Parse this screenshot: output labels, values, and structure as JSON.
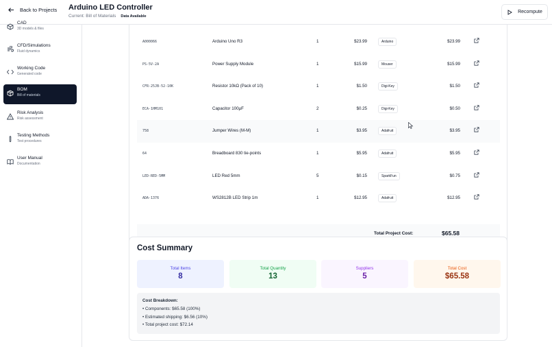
{
  "header": {
    "back_label": "Back to Projects",
    "title": "Arduino LED Controller",
    "subtitle": "Current: Bill of Materials",
    "badge": "Data Available",
    "recompute_label": "Recompute"
  },
  "sidebar": {
    "items": [
      {
        "label": "CAD",
        "desc": "3D models & files",
        "icon": "cube-icon"
      },
      {
        "label": "CFD/Simulations",
        "desc": "Fluid dynamics",
        "icon": "wind-icon"
      },
      {
        "label": "Working Code",
        "desc": "Generated code",
        "icon": "code-icon"
      },
      {
        "label": "BOM",
        "desc": "Bill of materials",
        "icon": "package-icon",
        "active": true
      },
      {
        "label": "Risk Analysis",
        "desc": "Risk assessment",
        "icon": "warning-icon"
      },
      {
        "label": "Testing Methods",
        "desc": "Test procedures",
        "icon": "test-tube-icon"
      },
      {
        "label": "User Manual",
        "desc": "Documentation",
        "icon": "book-icon"
      }
    ]
  },
  "bom": {
    "rows": [
      {
        "part": "A000066",
        "desc": "Arduino Uno R3",
        "qty": "1",
        "unit": "$23.99",
        "supplier": "Arduino",
        "total": "$23.99"
      },
      {
        "part": "PS-5V-2A",
        "desc": "Power Supply Module",
        "qty": "1",
        "unit": "$15.99",
        "supplier": "Mouser",
        "total": "$15.99"
      },
      {
        "part": "CFR-25JB-52-10K",
        "desc": "Resistor 10kΩ (Pack of 10)",
        "qty": "1",
        "unit": "$1.50",
        "supplier": "Digi-Key",
        "total": "$1.50"
      },
      {
        "part": "ECA-1HM101",
        "desc": "Capacitor 100μF",
        "qty": "2",
        "unit": "$0.25",
        "supplier": "Digi-Key",
        "total": "$0.50"
      },
      {
        "part": "758",
        "desc": "Jumper Wires (M-M)",
        "qty": "1",
        "unit": "$3.95",
        "supplier": "Adafruit",
        "total": "$3.95"
      },
      {
        "part": "64",
        "desc": "Breadboard 830 tie-points",
        "qty": "1",
        "unit": "$5.95",
        "supplier": "Adafruit",
        "total": "$5.95"
      },
      {
        "part": "LED-RED-5MM",
        "desc": "LED Red 5mm",
        "qty": "5",
        "unit": "$0.15",
        "supplier": "SparkFun",
        "total": "$0.75"
      },
      {
        "part": "ADA-1376",
        "desc": "WS2812B LED Strip 1m",
        "qty": "1",
        "unit": "$12.95",
        "supplier": "Adafruit",
        "total": "$12.95"
      }
    ],
    "total_label": "Total Project Cost:",
    "total_value": "$65.58"
  },
  "summary": {
    "title": "Cost Summary",
    "stats": [
      {
        "label": "Total Items",
        "value": "8",
        "bg": "#eef2ff",
        "label_color": "#4f46e5",
        "value_color": "#3730a3"
      },
      {
        "label": "Total Quantity",
        "value": "13",
        "bg": "#f0fdf4",
        "label_color": "#16a34a",
        "value_color": "#166534"
      },
      {
        "label": "Suppliers",
        "value": "5",
        "bg": "#faf5ff",
        "label_color": "#9333ea",
        "value_color": "#6b21a8"
      },
      {
        "label": "Total Cost",
        "value": "$65.58",
        "bg": "#fff7ed",
        "label_color": "#ea580c",
        "value_color": "#9a3412"
      }
    ],
    "breakdown_title": "Cost Breakdown:",
    "breakdown_lines": [
      "• Components: $65.58 (100%)",
      "• Estimated shipping: $6.56 (10%)",
      "• Total project cost: $72.14"
    ]
  }
}
